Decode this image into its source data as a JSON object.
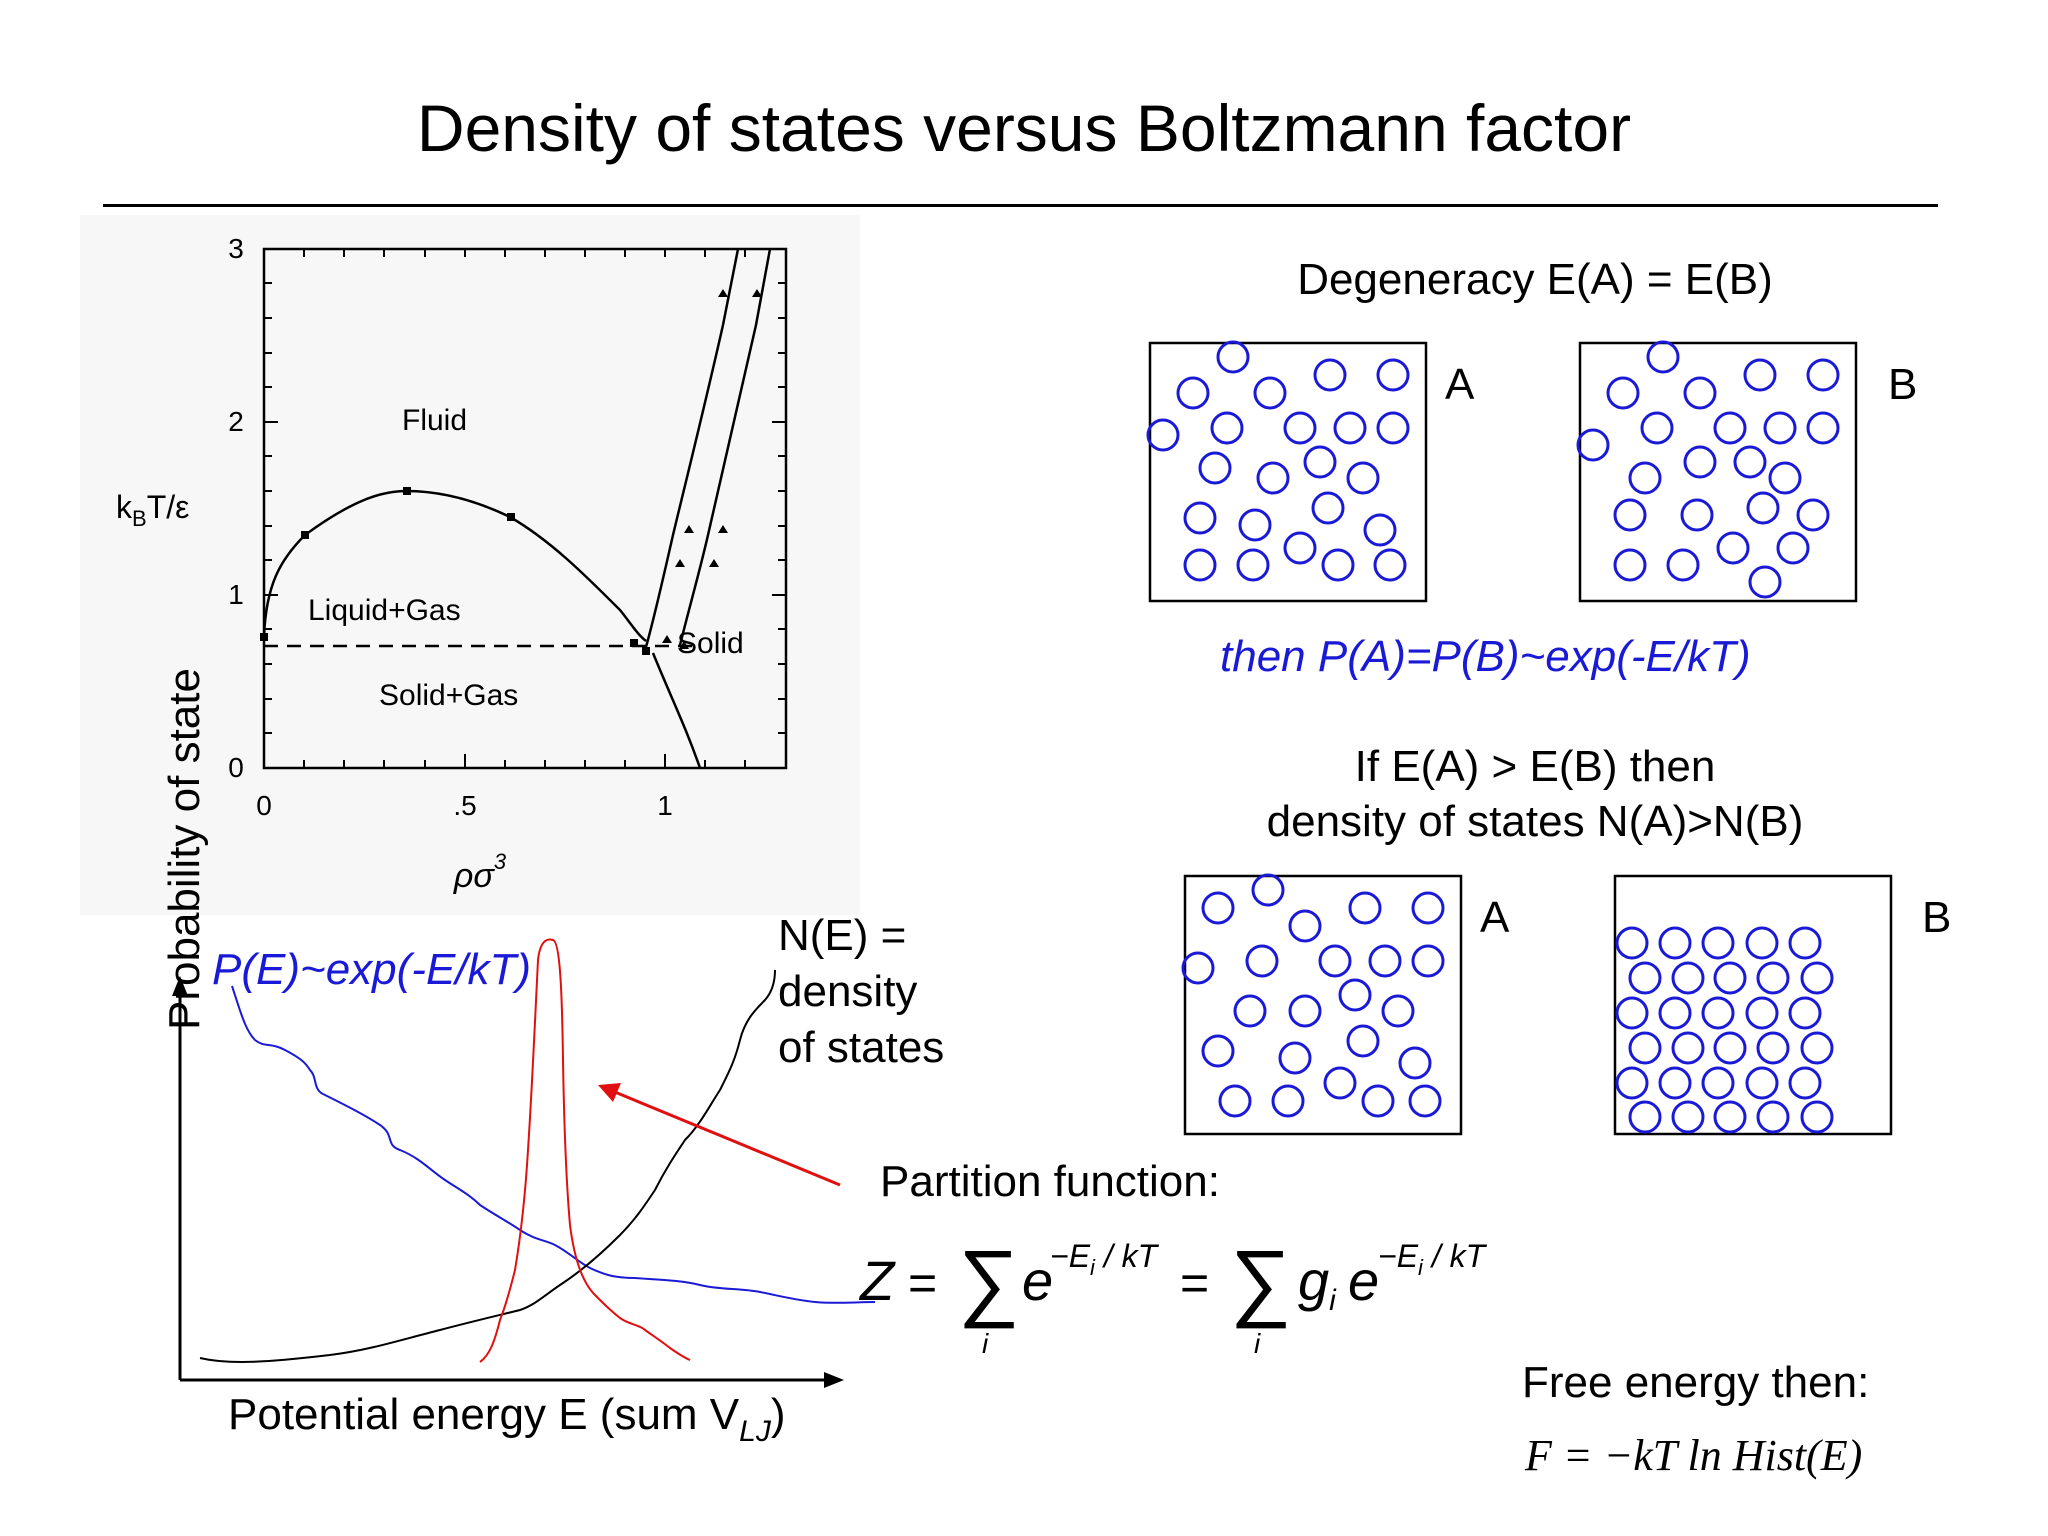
{
  "title": "Density of states versus Boltzmann factor",
  "phase_diagram": {
    "y_axis_label_main": "k",
    "y_axis_label_sub": "B",
    "y_axis_label_rest": "T/ε",
    "x_axis_label_main": "ρσ",
    "x_axis_label_sup": "3",
    "y_ticks": [
      "0",
      "1",
      "2",
      "3"
    ],
    "x_ticks": [
      "0",
      ".5",
      "1"
    ],
    "regions": {
      "fluid": "Fluid",
      "liquid_gas": "Liquid+Gas",
      "solid_gas": "Solid+Gas",
      "solid": "Solid"
    }
  },
  "degeneracy": {
    "heading": "Degeneracy  E(A) = E(B)",
    "box_a_label": "A",
    "box_b_label": "B",
    "statement": "then P(A)=P(B)~exp(-E/kT)"
  },
  "density": {
    "heading_line1": "If  E(A) > E(B) then",
    "heading_line2": "density of states N(A)>N(B)",
    "box_a_label": "A",
    "box_b_label": "B"
  },
  "distribution_plot": {
    "y_axis_label": "Probability of state",
    "x_axis_label_main": "Potential energy E (sum V",
    "x_axis_label_sub": "LJ",
    "x_axis_label_end": ")",
    "boltzmann_label": "P(E)~exp(-E/kT)",
    "dos_label_lines": [
      "N(E) =",
      "density",
      "of states"
    ]
  },
  "partition": {
    "heading": "Partition function:",
    "formula_lhs": "Z",
    "formula_eq": "=",
    "formula_sigma": "∑",
    "formula_index": "i",
    "formula_base": "e",
    "formula_exponent": "−E",
    "formula_exponent_sub": "i",
    "formula_exponent_rest": " / kT",
    "formula_g": "g",
    "formula_g_sub": "i"
  },
  "free_energy": {
    "heading": "Free energy then:",
    "formula": "F = −kT ln Hist(E)"
  },
  "colors": {
    "blue": "#1a1ad6",
    "red": "#e01010",
    "black": "#000000"
  }
}
